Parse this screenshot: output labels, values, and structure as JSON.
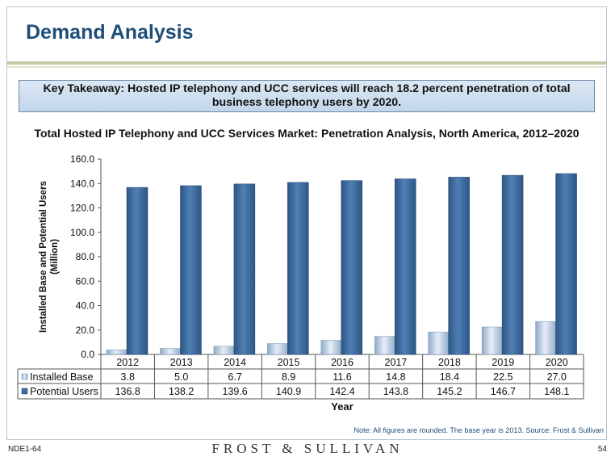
{
  "slide": {
    "title": "Demand Analysis",
    "takeaway": "Key Takeaway: Hosted IP telephony and UCC services will reach 18.2 percent penetration of total business telephony users by 2020.",
    "note": "Note: All figures are rounded. The base year is 2013. Source: Frost & Sullivan",
    "footer_left": "NDE1-64",
    "footer_center": "FROST & SULLIVAN",
    "footer_right": "54"
  },
  "chart_data": {
    "type": "bar",
    "title": "Total Hosted IP Telephony and UCC Services Market: Penetration Analysis, North America, 2012–2020",
    "xlabel": "Year",
    "ylabel": "Installed Base and Potential Users (Million)",
    "ylim": [
      0,
      160
    ],
    "yticks": [
      "0.0",
      "20.0",
      "40.0",
      "60.0",
      "80.0",
      "100.0",
      "120.0",
      "140.0",
      "160.0"
    ],
    "categories": [
      "2012",
      "2013",
      "2014",
      "2015",
      "2016",
      "2017",
      "2018",
      "2019",
      "2020"
    ],
    "series": [
      {
        "name": "Installed Base",
        "values": [
          3.8,
          5.0,
          6.7,
          8.9,
          11.6,
          14.8,
          18.4,
          22.5,
          27.0
        ],
        "labels": [
          "3.8",
          "5.0",
          "6.7",
          "8.9",
          "11.6",
          "14.8",
          "18.4",
          "22.5",
          "27.0"
        ],
        "color": "#b8cbe0"
      },
      {
        "name": "Potential Users",
        "values": [
          136.8,
          138.2,
          139.6,
          140.9,
          142.4,
          143.8,
          145.2,
          146.7,
          148.1
        ],
        "labels": [
          "136.8",
          "138.2",
          "139.6",
          "140.9",
          "142.4",
          "143.8",
          "145.2",
          "146.7",
          "148.1"
        ],
        "color": "#3e6b9e"
      }
    ],
    "data_table": true,
    "grid": false,
    "legend": "data-table-row-headers"
  }
}
